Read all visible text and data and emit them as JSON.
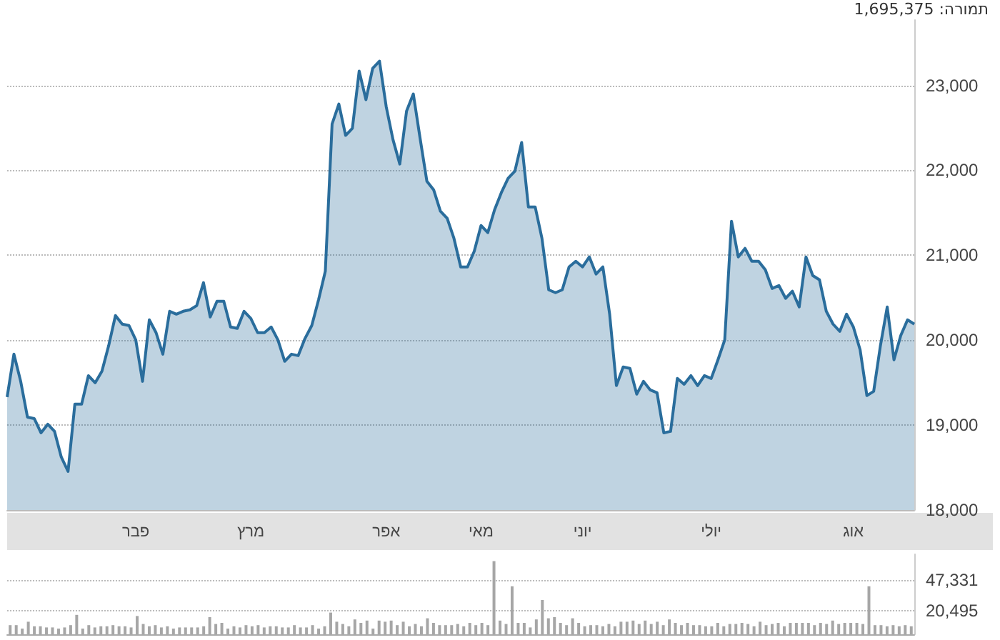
{
  "chart_data": [
    {
      "type": "area",
      "annotations": [
        "תמורה: 1,695,375"
      ],
      "color": "#2a6d9c",
      "marker": "none",
      "grid": "y",
      "ylim": [
        18000,
        23770
      ],
      "yticks": [
        {
          "value": 18000,
          "label": "18,000"
        },
        {
          "value": 19000,
          "label": "19,000"
        },
        {
          "value": 20000,
          "label": "20,000"
        },
        {
          "value": 21000,
          "label": "21,000"
        },
        {
          "value": 22000,
          "label": "22,000"
        },
        {
          "value": 23000,
          "label": "23,000"
        }
      ],
      "categories": [
        null,
        null,
        null,
        null,
        null,
        null,
        null,
        null,
        null,
        null,
        null,
        null,
        null,
        null,
        null,
        null,
        null,
        null,
        null,
        "פבר",
        null,
        null,
        null,
        null,
        null,
        null,
        null,
        null,
        null,
        null,
        null,
        null,
        null,
        null,
        null,
        null,
        "מרץ",
        null,
        null,
        null,
        null,
        null,
        null,
        null,
        null,
        null,
        null,
        null,
        null,
        null,
        null,
        null,
        null,
        null,
        null,
        null,
        "אפר",
        null,
        null,
        null,
        null,
        null,
        null,
        null,
        null,
        null,
        null,
        null,
        null,
        null,
        "מאי",
        null,
        null,
        null,
        null,
        null,
        null,
        null,
        null,
        null,
        null,
        null,
        null,
        null,
        null,
        "יוני",
        null,
        null,
        null,
        null,
        null,
        null,
        null,
        null,
        null,
        null,
        null,
        null,
        null,
        null,
        null,
        null,
        null,
        null,
        "יולי",
        null,
        null,
        null,
        null,
        null,
        null,
        null,
        null,
        null,
        null,
        null,
        null,
        null,
        null,
        null,
        null,
        null,
        null,
        null,
        null,
        "אוג",
        null,
        null,
        null,
        null,
        null,
        null,
        null,
        null,
        null
      ],
      "values": [
        19330,
        19835,
        19515,
        19094,
        19077,
        18909,
        19010,
        18926,
        18623,
        18455,
        19246,
        19246,
        19582,
        19498,
        19633,
        19936,
        20290,
        20189,
        20172,
        20003,
        19515,
        20239,
        20088,
        19835,
        20340,
        20306,
        20340,
        20357,
        20407,
        20677,
        20273,
        20458,
        20458,
        20155,
        20138,
        20340,
        20256,
        20088,
        20088,
        20155,
        20003,
        19751,
        19835,
        19818,
        20020,
        20172,
        20475,
        20811,
        22545,
        22781,
        22411,
        22495,
        23168,
        22832,
        23202,
        23286,
        22747,
        22360,
        22074,
        22697,
        22899,
        22377,
        21872,
        21771,
        21519,
        21434,
        21199,
        20862,
        20862,
        21047,
        21350,
        21266,
        21535,
        21737,
        21906,
        21990,
        22327,
        21569,
        21569,
        21199,
        20593,
        20559,
        20593,
        20862,
        20929,
        20862,
        20980,
        20778,
        20862,
        20306,
        19465,
        19684,
        19667,
        19364,
        19515,
        19414,
        19380,
        18909,
        18926,
        19549,
        19481,
        19582,
        19465,
        19582,
        19549,
        19768,
        20003,
        21401,
        20980,
        21081,
        20929,
        20929,
        20828,
        20609,
        20643,
        20492,
        20576,
        20391,
        20980,
        20761,
        20710,
        20340,
        20189,
        20104,
        20306,
        20155,
        19886,
        19347,
        19397,
        19936,
        20391,
        19768,
        20054,
        20239,
        20189
      ]
    },
    {
      "type": "bar",
      "color": "#a6a6a6",
      "grid": "y",
      "tick_labels": "y",
      "ylim": [
        0,
        70000
      ],
      "yticks": [
        {
          "value": 20495,
          "label": "20,495"
        },
        {
          "value": 47331,
          "label": "47,331"
        }
      ],
      "categories": [
        null,
        null,
        null,
        null,
        null,
        null,
        null,
        null,
        null,
        null,
        null,
        null,
        null,
        null,
        null,
        null,
        null,
        null,
        null,
        null,
        null,
        null,
        null,
        null,
        null,
        null,
        null,
        null,
        null,
        null,
        null,
        null,
        null,
        null,
        null,
        null,
        null,
        null,
        null,
        null,
        null,
        null,
        null,
        null,
        null,
        null,
        null,
        null,
        null,
        null,
        null,
        null,
        null,
        null,
        null,
        null,
        null,
        null,
        null,
        null,
        null,
        null,
        null,
        null,
        null,
        null,
        null,
        null,
        null,
        null,
        null,
        null,
        null,
        null,
        null,
        null,
        null,
        null,
        null,
        null,
        null,
        null,
        null,
        null,
        null,
        null,
        null,
        null,
        null,
        null,
        null,
        null,
        null,
        null,
        null,
        null,
        null,
        null,
        null,
        null,
        null,
        null,
        null,
        null,
        null,
        null,
        null,
        null,
        null,
        null,
        null,
        null,
        null,
        null,
        null,
        null,
        null,
        null,
        null,
        null,
        null,
        null,
        null,
        null,
        null,
        null,
        null,
        null,
        null,
        null,
        null,
        null,
        null,
        null,
        null,
        null,
        null,
        null,
        null,
        null,
        null,
        null,
        null,
        null,
        null,
        null,
        null,
        null,
        null,
        null
      ],
      "values": [
        8000,
        8000,
        5000,
        11000,
        7000,
        7000,
        6000,
        6000,
        5000,
        6000,
        8000,
        17000,
        5000,
        8000,
        6000,
        7000,
        7000,
        8000,
        7000,
        7000,
        6000,
        16000,
        9000,
        7000,
        8000,
        6000,
        7000,
        5000,
        6000,
        6000,
        6000,
        6000,
        7000,
        15000,
        9000,
        10000,
        5000,
        7000,
        6000,
        8000,
        7000,
        8000,
        6000,
        7000,
        7000,
        6000,
        6000,
        8000,
        6000,
        6000,
        8000,
        5000,
        7000,
        19000,
        11000,
        9000,
        7000,
        13000,
        10000,
        12000,
        5000,
        12000,
        11000,
        12000,
        8000,
        11000,
        7000,
        9000,
        7000,
        14000,
        10000,
        8000,
        8000,
        8000,
        9000,
        7000,
        10000,
        8000,
        10000,
        8000,
        64000,
        12000,
        9000,
        42000,
        10000,
        10000,
        6000,
        13000,
        30000,
        14000,
        15000,
        10000,
        8000,
        14000,
        10000,
        7000,
        8000,
        8000,
        7000,
        9000,
        7000,
        11000,
        11000,
        12000,
        9000,
        12000,
        9000,
        11000,
        8000,
        13000,
        10000,
        8000,
        10000,
        8000,
        8000,
        7000,
        7000,
        10000,
        7000,
        9000,
        9000,
        10000,
        9000,
        7000,
        11000,
        8000,
        9000,
        10000,
        7000,
        10000,
        10000,
        10000,
        10000,
        8000,
        10000,
        9000,
        12000,
        9000,
        10000,
        10000,
        10000,
        9000,
        42000,
        8000,
        8000,
        7000,
        8000,
        7000,
        8000,
        7000
      ]
    }
  ]
}
